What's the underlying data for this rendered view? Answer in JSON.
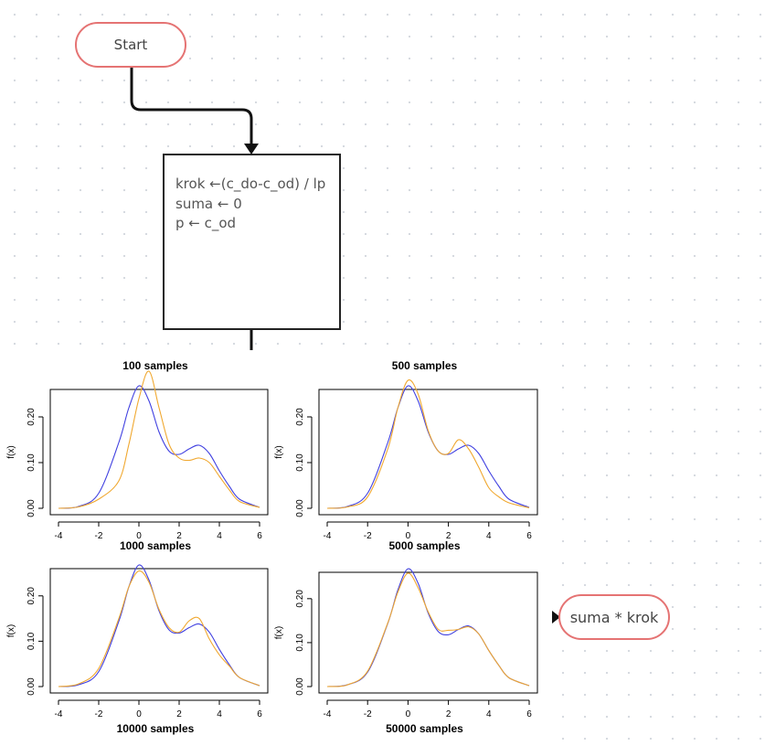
{
  "flowchart": {
    "start_label": "Start",
    "process_lines": [
      "krok ←(c_do-c_od) / lp",
      "suma ← 0",
      "p ← c_od"
    ],
    "end_label": "suma * krok"
  },
  "colors": {
    "terminator_border": "#e57373",
    "true_density": "#3333dd",
    "estimated_density": "#f0a830"
  },
  "chart_data": [
    {
      "type": "line",
      "title": "100  samples",
      "ylabel": "f(x)",
      "xlim": [
        -4,
        6
      ],
      "ylim": [
        0,
        0.26
      ],
      "xticks": [
        "-4",
        "-2",
        "0",
        "2",
        "4",
        "6"
      ],
      "yticks": [
        "0.00",
        "0.10",
        "0.20"
      ],
      "series": [
        {
          "color": "blue",
          "x": [
            -4,
            -3,
            -2,
            -1,
            -0.5,
            0,
            0.5,
            1,
            1.5,
            2,
            2.5,
            3,
            3.5,
            4,
            4.5,
            5,
            6
          ],
          "y": [
            0,
            0.004,
            0.033,
            0.144,
            0.22,
            0.268,
            0.235,
            0.167,
            0.125,
            0.118,
            0.13,
            0.138,
            0.12,
            0.082,
            0.048,
            0.02,
            0.002
          ]
        },
        {
          "color": "orange",
          "x": [
            -4,
            -3,
            -2,
            -1,
            -0.5,
            0,
            0.5,
            1,
            1.5,
            2,
            2.5,
            3,
            3.5,
            4,
            4.5,
            5,
            6
          ],
          "y": [
            0,
            0.003,
            0.02,
            0.06,
            0.14,
            0.24,
            0.3,
            0.22,
            0.14,
            0.11,
            0.105,
            0.11,
            0.1,
            0.07,
            0.04,
            0.015,
            0.002
          ]
        }
      ]
    },
    {
      "type": "line",
      "title": "500  samples",
      "ylabel": "f(x)",
      "xlim": [
        -4,
        6
      ],
      "ylim": [
        0,
        0.26
      ],
      "xticks": [
        "-4",
        "-2",
        "0",
        "2",
        "4",
        "6"
      ],
      "yticks": [
        "0.00",
        "0.10",
        "0.20"
      ],
      "series": [
        {
          "color": "blue",
          "x": [
            -4,
            -3,
            -2,
            -1,
            -0.5,
            0,
            0.5,
            1,
            1.5,
            2,
            2.5,
            3,
            3.5,
            4,
            4.5,
            5,
            6
          ],
          "y": [
            0,
            0.004,
            0.033,
            0.144,
            0.22,
            0.268,
            0.235,
            0.167,
            0.125,
            0.118,
            0.13,
            0.138,
            0.12,
            0.082,
            0.048,
            0.02,
            0.002
          ]
        },
        {
          "color": "orange",
          "x": [
            -4,
            -3,
            -2,
            -1,
            -0.5,
            0,
            0.5,
            1,
            1.5,
            2,
            2.5,
            3,
            3.5,
            4,
            4.5,
            5,
            6
          ],
          "y": [
            0,
            0.003,
            0.025,
            0.13,
            0.22,
            0.28,
            0.25,
            0.17,
            0.125,
            0.12,
            0.15,
            0.13,
            0.09,
            0.045,
            0.025,
            0.012,
            0.001
          ]
        }
      ]
    },
    {
      "type": "line",
      "title": "1000  samples",
      "ylabel": "f(x)",
      "xlim": [
        -4,
        6
      ],
      "ylim": [
        0,
        0.26
      ],
      "xticks": [
        "-4",
        "-2",
        "0",
        "2",
        "4",
        "6"
      ],
      "yticks": [
        "0.00",
        "0.10",
        "0.20"
      ],
      "series": [
        {
          "color": "blue",
          "x": [
            -4,
            -3,
            -2,
            -1,
            -0.5,
            0,
            0.5,
            1,
            1.5,
            2,
            2.5,
            3,
            3.5,
            4,
            4.5,
            5,
            6
          ],
          "y": [
            0,
            0.004,
            0.033,
            0.144,
            0.22,
            0.268,
            0.235,
            0.167,
            0.125,
            0.118,
            0.13,
            0.138,
            0.12,
            0.082,
            0.048,
            0.02,
            0.002
          ]
        },
        {
          "color": "orange",
          "x": [
            -4,
            -3,
            -2,
            -1,
            -0.5,
            0,
            0.5,
            1,
            1.5,
            2,
            2.5,
            3,
            3.5,
            4,
            4.5,
            5,
            6
          ],
          "y": [
            0,
            0.006,
            0.04,
            0.15,
            0.22,
            0.255,
            0.23,
            0.17,
            0.13,
            0.12,
            0.145,
            0.15,
            0.105,
            0.07,
            0.045,
            0.02,
            0.002
          ]
        }
      ]
    },
    {
      "type": "line",
      "title": "5000  samples",
      "ylabel": "f(x)",
      "xlim": [
        -4,
        6
      ],
      "ylim": [
        0,
        0.26
      ],
      "xticks": [
        "-4",
        "-2",
        "0",
        "2",
        "4",
        "6"
      ],
      "yticks": [
        "0.00",
        "0.10",
        "0.20"
      ],
      "series": [
        {
          "color": "blue",
          "x": [
            -4,
            -3,
            -2,
            -1,
            -0.5,
            0,
            0.5,
            1,
            1.5,
            2,
            2.5,
            3,
            3.5,
            4,
            4.5,
            5,
            6
          ],
          "y": [
            0,
            0.004,
            0.033,
            0.144,
            0.22,
            0.268,
            0.235,
            0.167,
            0.125,
            0.118,
            0.13,
            0.138,
            0.12,
            0.082,
            0.048,
            0.02,
            0.002
          ]
        },
        {
          "color": "orange",
          "x": [
            -4,
            -3,
            -2,
            -1,
            -0.5,
            0,
            0.5,
            1,
            1.5,
            2,
            2.5,
            3,
            3.5,
            4,
            4.5,
            5,
            6
          ],
          "y": [
            0,
            0.004,
            0.035,
            0.145,
            0.215,
            0.258,
            0.225,
            0.17,
            0.13,
            0.128,
            0.13,
            0.136,
            0.12,
            0.082,
            0.048,
            0.02,
            0.002
          ]
        }
      ]
    },
    {
      "type": "line",
      "title": "10000  samples",
      "ylabel": "f(x)",
      "xlim": [
        -4,
        6
      ],
      "ylim": [
        0,
        0.26
      ],
      "xticks": [
        "-4",
        "-2",
        "0",
        "2",
        "4",
        "6"
      ],
      "yticks": [
        "0.00",
        "0.10",
        "0.20"
      ],
      "xlabel_only": true,
      "series": [
        {
          "color": "blue",
          "x": [
            -4,
            -3,
            -2,
            -1,
            -0.5,
            0,
            0.5,
            1,
            1.5,
            2,
            2.5,
            3,
            3.5,
            4,
            4.5,
            5,
            6
          ],
          "y": [
            0,
            0.004,
            0.033,
            0.144,
            0.22,
            0.268,
            0.235,
            0.167,
            0.125,
            0.118,
            0.13,
            0.138,
            0.12,
            0.082,
            0.048,
            0.02,
            0.002
          ]
        },
        {
          "color": "orange",
          "x": [
            -4,
            -3,
            -2,
            -1,
            -0.5,
            0,
            0.5,
            1,
            1.5,
            2,
            2.5,
            3,
            3.5,
            4,
            4.5,
            5,
            6
          ],
          "y": [
            0,
            0.004,
            0.035,
            0.145,
            0.215,
            0.258,
            0.225,
            0.17,
            0.13,
            0.128,
            0.13,
            0.136,
            0.12,
            0.082,
            0.048,
            0.02,
            0.002
          ]
        }
      ]
    },
    {
      "type": "line",
      "title": "50000  samples",
      "ylabel": "f(x)",
      "xlim": [
        -4,
        6
      ],
      "ylim": [
        0,
        0.26
      ],
      "xticks": [
        "-4",
        "-2",
        "0",
        "2",
        "4",
        "6"
      ],
      "yticks": [
        "0.00",
        "0.10",
        "0.20"
      ],
      "xlabel_only": true,
      "series": [
        {
          "color": "blue",
          "x": [
            -4,
            -3,
            -2,
            -1,
            -0.5,
            0,
            0.5,
            1,
            1.5,
            2,
            2.5,
            3,
            3.5,
            4,
            4.5,
            5,
            6
          ],
          "y": [
            0,
            0.004,
            0.033,
            0.144,
            0.22,
            0.268,
            0.235,
            0.167,
            0.125,
            0.118,
            0.13,
            0.138,
            0.12,
            0.082,
            0.048,
            0.02,
            0.002
          ]
        },
        {
          "color": "orange",
          "x": [
            -4,
            -3,
            -2,
            -1,
            -0.5,
            0,
            0.5,
            1,
            1.5,
            2,
            2.5,
            3,
            3.5,
            4,
            4.5,
            5,
            6
          ],
          "y": [
            0,
            0.004,
            0.035,
            0.145,
            0.215,
            0.258,
            0.225,
            0.17,
            0.13,
            0.128,
            0.13,
            0.136,
            0.12,
            0.082,
            0.048,
            0.02,
            0.002
          ]
        }
      ]
    }
  ]
}
